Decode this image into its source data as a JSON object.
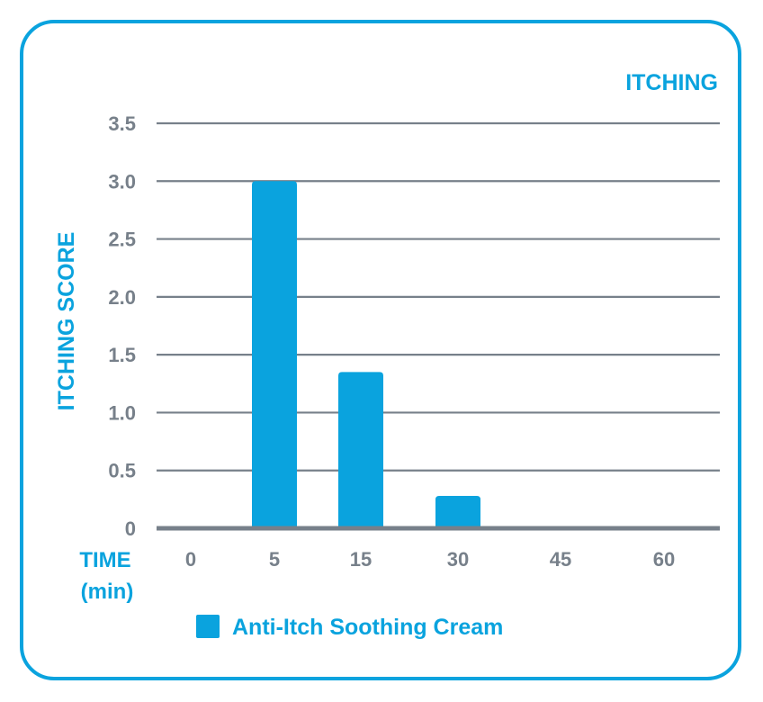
{
  "chart_data": {
    "type": "bar",
    "title": "ITCHING",
    "ylabel": "ITCHING SCORE",
    "xlabel": [
      "TIME",
      "(min)"
    ],
    "categories": [
      "0",
      "5",
      "15",
      "30",
      "45",
      "60"
    ],
    "series": [
      {
        "name": "Anti-Itch Soothing Cream",
        "values": [
          0,
          3.0,
          1.35,
          0.28,
          0,
          0
        ]
      }
    ],
    "ylim": [
      0,
      3.5
    ],
    "yticks": [
      "0",
      "0.5",
      "1.0",
      "1.5",
      "2.0",
      "2.5",
      "3.0",
      "3.5"
    ],
    "grid": true,
    "legend_position": "bottom",
    "colors": {
      "bar": "#0aa3de",
      "accent": "#0aa3de",
      "grid": "#77808a",
      "tick_text": "#77808a"
    }
  }
}
